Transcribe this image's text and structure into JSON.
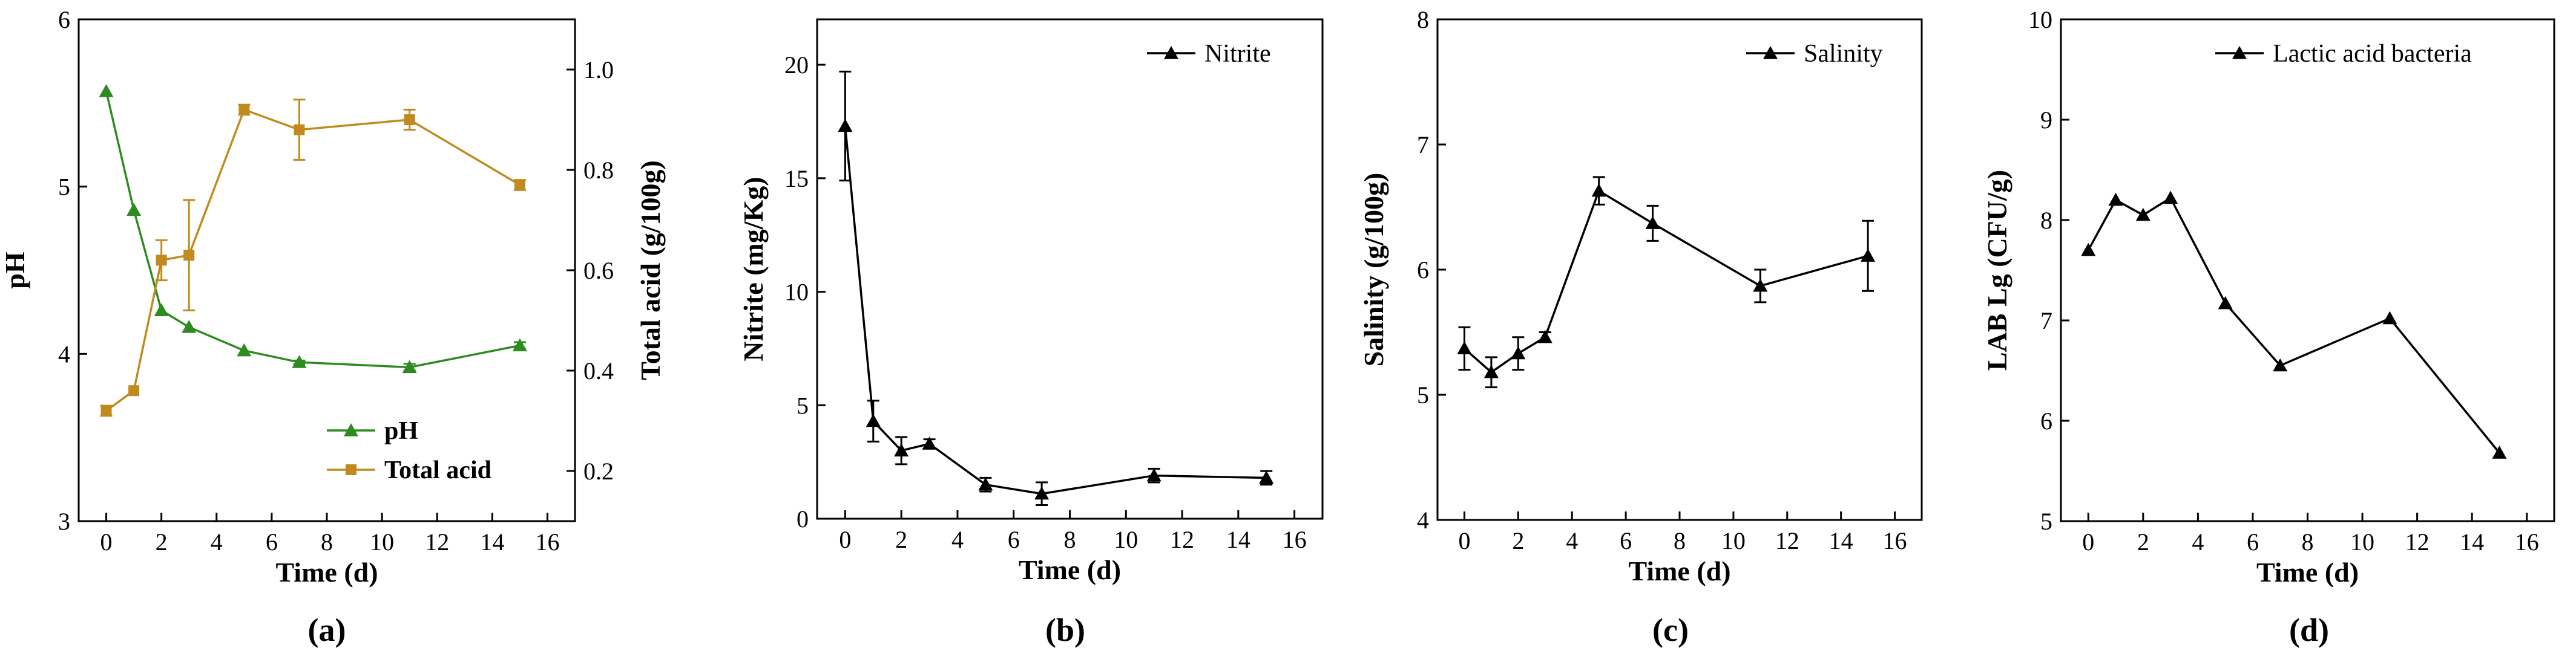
{
  "chart_data": [
    {
      "type": "line",
      "panel_label": "(a)",
      "xlabel": "Time (d)",
      "ylabel": "pH",
      "y2label": "Total acid (g/100g)",
      "xlim": [
        -1,
        17
      ],
      "ylim": [
        3,
        6
      ],
      "y2lim": [
        0.1,
        1.1
      ],
      "xticks": [
        0,
        2,
        4,
        6,
        8,
        10,
        12,
        14,
        16
      ],
      "yticks": [
        3,
        4,
        5,
        6
      ],
      "y2ticks": [
        0.2,
        0.4,
        0.6,
        0.8,
        1.0
      ],
      "legend_position": "bottom-right",
      "series": [
        {
          "name": "pH",
          "axis": "left",
          "color": "#2e8b1f",
          "marker": "triangle",
          "x": [
            0,
            1,
            2,
            3,
            5,
            7,
            11,
            15
          ],
          "values": [
            5.57,
            4.86,
            4.26,
            4.16,
            4.02,
            3.95,
            3.92,
            4.05
          ],
          "errors": [
            0,
            0,
            0,
            0,
            0,
            0.01,
            0.02,
            0.02
          ]
        },
        {
          "name": "Total acid",
          "axis": "right",
          "color": "#c08b1c",
          "marker": "square",
          "x": [
            0,
            1,
            2,
            3,
            5,
            7,
            11,
            15
          ],
          "values": [
            0.32,
            0.36,
            0.62,
            0.63,
            0.92,
            0.88,
            0.9,
            0.77
          ],
          "errors": [
            0.01,
            0,
            0.04,
            0.11,
            0.01,
            0.06,
            0.02,
            0.01
          ]
        }
      ]
    },
    {
      "type": "line",
      "panel_label": "(b)",
      "xlabel": "Time (d)",
      "ylabel": "Nitrite (mg/Kg)",
      "xlim": [
        -1,
        17
      ],
      "ylim": [
        0,
        22
      ],
      "xticks": [
        0,
        2,
        4,
        6,
        8,
        10,
        12,
        14,
        16
      ],
      "yticks": [
        0,
        5,
        10,
        15,
        20
      ],
      "legend_position": "top-right",
      "series": [
        {
          "name": "Nitrite",
          "color": "#000000",
          "marker": "triangle",
          "x": [
            0,
            1,
            2,
            3,
            5,
            7,
            11,
            15
          ],
          "values": [
            17.3,
            4.3,
            3.0,
            3.3,
            1.5,
            1.1,
            1.9,
            1.8
          ],
          "errors": [
            2.4,
            0.9,
            0.6,
            0.2,
            0.3,
            0.5,
            0.3,
            0.3
          ]
        }
      ]
    },
    {
      "type": "line",
      "panel_label": "(c)",
      "xlabel": "Time (d)",
      "ylabel": "Salinity (g/100g)",
      "xlim": [
        -1,
        17
      ],
      "ylim": [
        4,
        8
      ],
      "xticks": [
        0,
        2,
        4,
        6,
        8,
        10,
        12,
        14,
        16
      ],
      "yticks": [
        4,
        5,
        6,
        7,
        8
      ],
      "legend_position": "top-right",
      "series": [
        {
          "name": "Salinity",
          "color": "#000000",
          "marker": "triangle",
          "x": [
            0,
            1,
            2,
            3,
            5,
            7,
            11,
            15
          ],
          "values": [
            5.37,
            5.18,
            5.33,
            5.46,
            6.63,
            6.37,
            5.87,
            6.11
          ],
          "errors": [
            0.17,
            0.12,
            0.13,
            0.04,
            0.11,
            0.14,
            0.13,
            0.28
          ]
        }
      ]
    },
    {
      "type": "line",
      "panel_label": "(d)",
      "xlabel": "Time (d)",
      "ylabel": "LAB  Lg (CFU/g)",
      "xlim": [
        -1,
        17
      ],
      "ylim": [
        5,
        10
      ],
      "xticks": [
        0,
        2,
        4,
        6,
        8,
        10,
        12,
        14,
        16
      ],
      "yticks": [
        5,
        6,
        7,
        8,
        9,
        10
      ],
      "legend_position": "top-right",
      "series": [
        {
          "name": "Lactic acid bacteria",
          "color": "#000000",
          "marker": "triangle",
          "x": [
            0,
            1,
            2,
            3,
            5,
            7,
            11,
            15
          ],
          "values": [
            7.7,
            8.2,
            8.05,
            8.22,
            7.17,
            6.55,
            7.02,
            5.68
          ],
          "errors": [
            0,
            0,
            0,
            0,
            0,
            0,
            0,
            0
          ]
        }
      ]
    }
  ]
}
